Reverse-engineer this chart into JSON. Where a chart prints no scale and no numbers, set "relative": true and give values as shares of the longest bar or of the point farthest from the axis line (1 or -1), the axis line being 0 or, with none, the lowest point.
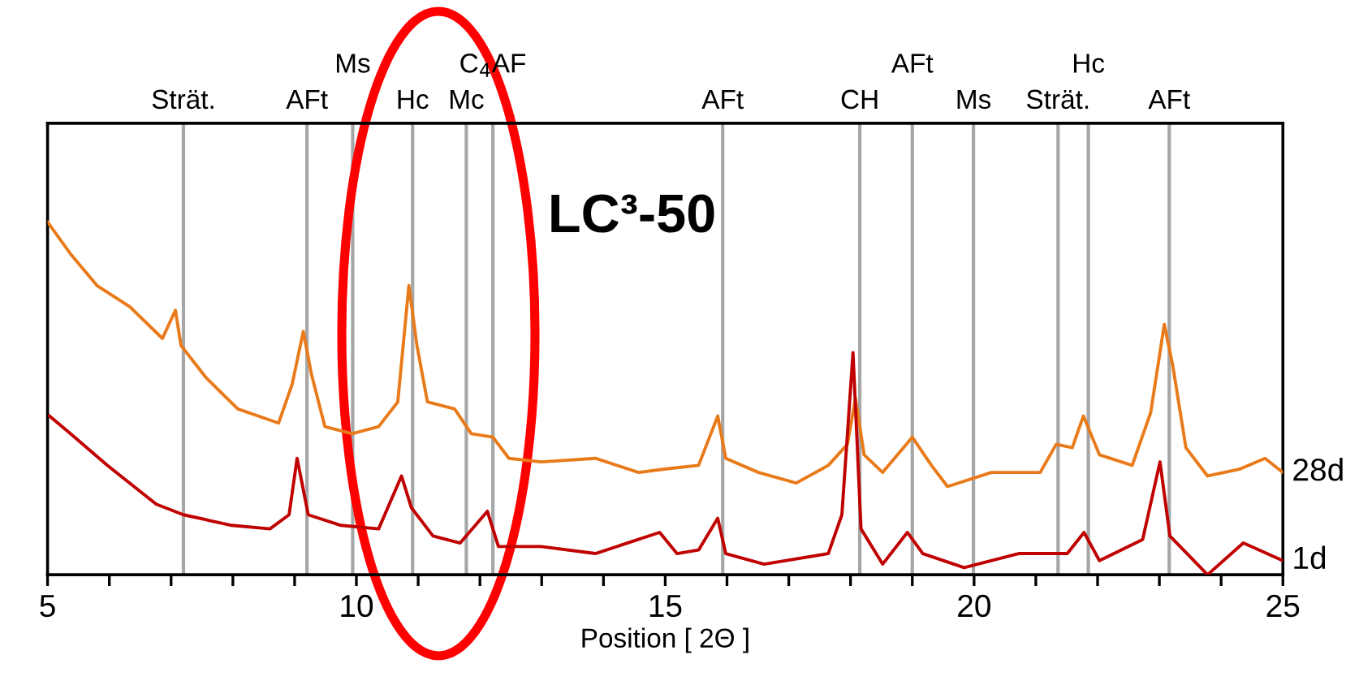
{
  "chart_data": {
    "type": "line",
    "title": "LC³-50",
    "xlabel": "Position [ 2Θ ]",
    "relative": true,
    "legend": false,
    "marker": "none",
    "line_style": "solid",
    "xlim": [
      5,
      25
    ],
    "xticks": [
      5,
      {
        "value": 6,
        "label": null
      },
      {
        "value": 7,
        "label": null
      },
      {
        "value": 8,
        "label": null
      },
      {
        "value": 9,
        "label": null
      },
      10,
      {
        "value": 11,
        "label": null
      },
      {
        "value": 12,
        "label": null
      },
      {
        "value": 13,
        "label": null
      },
      {
        "value": 14,
        "label": null
      },
      15,
      {
        "value": 16,
        "label": null
      },
      {
        "value": 17,
        "label": null
      },
      {
        "value": 18,
        "label": null
      },
      {
        "value": 19,
        "label": null
      },
      20,
      {
        "value": 21,
        "label": null
      },
      {
        "value": 22,
        "label": null
      },
      {
        "value": 23,
        "label": null
      },
      {
        "value": 24,
        "label": null
      },
      25
    ],
    "series": [
      {
        "name": "28d",
        "color": "#e97a1a",
        "x": [
          5.0,
          5.37,
          5.8,
          6.33,
          6.86,
          7.07,
          7.16,
          7.56,
          8.08,
          8.74,
          8.96,
          9.14,
          9.27,
          9.49,
          9.93,
          10.36,
          10.67,
          10.85,
          10.98,
          11.15,
          11.59,
          11.86,
          12.21,
          12.47,
          12.99,
          13.87,
          14.57,
          15.01,
          15.54,
          15.85,
          15.98,
          16.51,
          17.12,
          17.64,
          17.95,
          18.08,
          18.22,
          18.52,
          19.0,
          19.31,
          19.57,
          20.28,
          21.07,
          21.33,
          21.59,
          21.77,
          22.03,
          22.56,
          22.86,
          23.08,
          23.22,
          23.43,
          23.78,
          24.31,
          24.71,
          25.0
        ],
        "values": [
          1.0,
          0.91,
          0.82,
          0.76,
          0.67,
          0.75,
          0.65,
          0.56,
          0.47,
          0.43,
          0.54,
          0.69,
          0.57,
          0.42,
          0.4,
          0.42,
          0.49,
          0.82,
          0.65,
          0.49,
          0.47,
          0.4,
          0.39,
          0.33,
          0.32,
          0.33,
          0.29,
          0.3,
          0.31,
          0.45,
          0.33,
          0.29,
          0.26,
          0.31,
          0.37,
          0.5,
          0.34,
          0.29,
          0.39,
          0.31,
          0.25,
          0.29,
          0.29,
          0.37,
          0.36,
          0.45,
          0.34,
          0.31,
          0.46,
          0.71,
          0.59,
          0.36,
          0.28,
          0.3,
          0.33,
          0.29
        ]
      },
      {
        "name": "1d",
        "color": "#c00000",
        "x": [
          5.03,
          5.37,
          5.97,
          6.76,
          7.2,
          7.98,
          8.6,
          8.91,
          9.04,
          9.22,
          9.75,
          10.36,
          10.73,
          10.89,
          11.24,
          11.68,
          12.12,
          12.3,
          12.99,
          13.87,
          14.91,
          15.19,
          15.54,
          15.85,
          15.98,
          16.6,
          17.64,
          17.86,
          18.04,
          18.17,
          18.52,
          18.92,
          19.17,
          19.84,
          20.72,
          21.51,
          21.78,
          22.03,
          22.73,
          23.01,
          23.17,
          23.78,
          24.36,
          25.0
        ],
        "values": [
          0.45,
          0.4,
          0.31,
          0.2,
          0.17,
          0.14,
          0.13,
          0.17,
          0.33,
          0.17,
          0.14,
          0.13,
          0.28,
          0.19,
          0.11,
          0.09,
          0.18,
          0.08,
          0.08,
          0.06,
          0.12,
          0.06,
          0.07,
          0.16,
          0.06,
          0.03,
          0.06,
          0.17,
          0.63,
          0.13,
          0.03,
          0.12,
          0.06,
          0.02,
          0.06,
          0.06,
          0.12,
          0.04,
          0.1,
          0.32,
          0.11,
          0.0,
          0.09,
          0.04
        ]
      }
    ],
    "ref_lines": [
      {
        "axis": "x",
        "value": 7.2,
        "label": "Strät.",
        "color": "#a6a6a6"
      },
      {
        "axis": "x",
        "value": 9.2,
        "label": "AFt",
        "color": "#a6a6a6"
      },
      {
        "axis": "x",
        "value": 9.94,
        "label": "Ms",
        "color": "#a6a6a6"
      },
      {
        "axis": "x",
        "value": 10.91,
        "label": "Hc",
        "color": "#a6a6a6"
      },
      {
        "axis": "x",
        "value": 11.78,
        "label": "Mc",
        "color": "#a6a6a6"
      },
      {
        "axis": "x",
        "value": 12.21,
        "label": "C$_{4}$AF",
        "color": "#a6a6a6"
      },
      {
        "axis": "x",
        "value": 15.93,
        "label": "AFt",
        "color": "#a6a6a6"
      },
      {
        "axis": "x",
        "value": 18.15,
        "label": "CH",
        "color": "#a6a6a6"
      },
      {
        "axis": "x",
        "value": 19.0,
        "label": "AFt",
        "color": "#a6a6a6"
      },
      {
        "axis": "x",
        "value": 19.99,
        "label": "Ms",
        "color": "#a6a6a6"
      },
      {
        "axis": "x",
        "value": 21.36,
        "label": "Strät.",
        "color": "#a6a6a6"
      },
      {
        "axis": "x",
        "value": 21.85,
        "label": "Hc",
        "color": "#a6a6a6"
      },
      {
        "axis": "x",
        "value": 23.16,
        "label": "AFt",
        "color": "#a6a6a6"
      }
    ]
  }
}
